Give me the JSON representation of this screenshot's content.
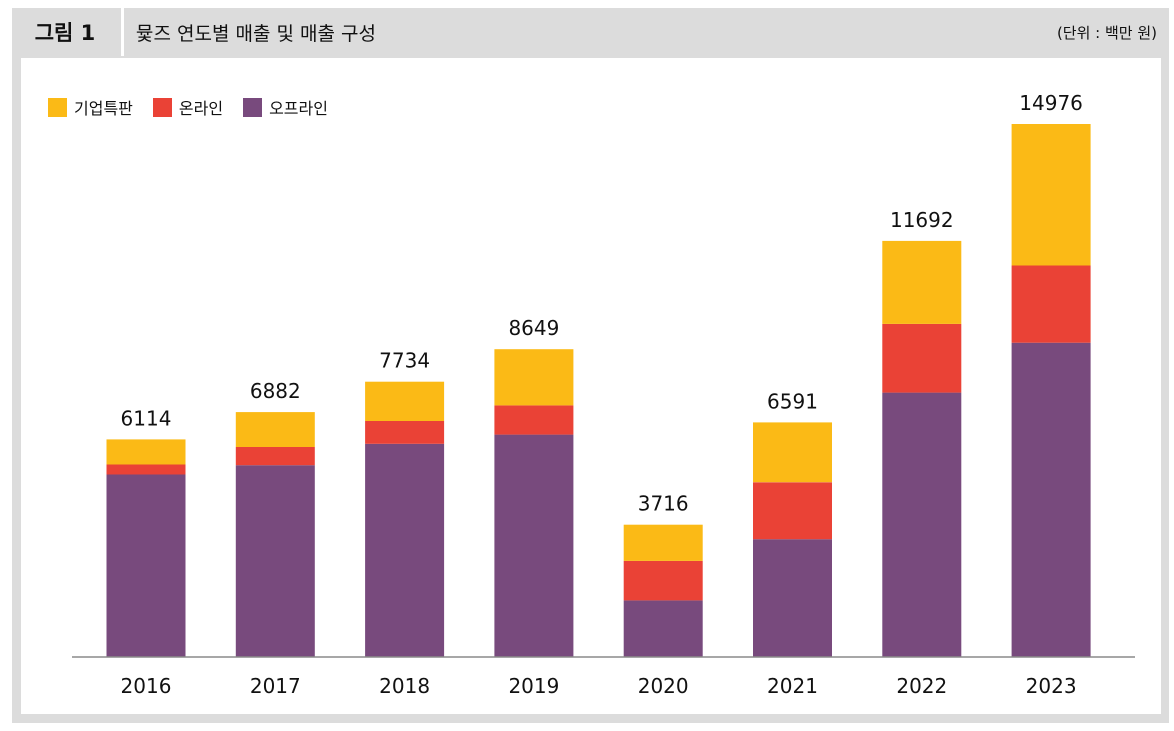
{
  "figure": {
    "label": "그림 1",
    "title": "뮻즈 연도별 매출 및 매출 구성",
    "unit": "(단위 : 백만 원)"
  },
  "colors": {
    "기업특판": "#FBBA16",
    "온라인": "#EA4236",
    "오프라인": "#784A7D",
    "header_bg": "#dcdcdc"
  },
  "chart_data": {
    "type": "bar",
    "stacked": true,
    "title": "뮻즈 연도별 매출 및 매출 구성",
    "unit": "(단위 : 백만 원)",
    "xlabel": "",
    "ylabel": "",
    "ylim": [
      0,
      16000
    ],
    "grid": false,
    "legend": "top-left",
    "categories": [
      "2016",
      "2017",
      "2018",
      "2019",
      "2020",
      "2021",
      "2022",
      "2023"
    ],
    "totals": [
      6114,
      6882,
      7734,
      8649,
      3716,
      6591,
      11692,
      14976
    ],
    "series": [
      {
        "name": "오프라인",
        "color": "#784A7D",
        "values": [
          5130,
          5390,
          5990,
          6250,
          1590,
          3310,
          7430,
          8830
        ]
      },
      {
        "name": "온라인",
        "color": "#EA4236",
        "values": [
          280,
          510,
          640,
          820,
          1110,
          1600,
          1930,
          2170
        ]
      },
      {
        "name": "기업특판",
        "color": "#FBBA16",
        "values": [
          704,
          982,
          1104,
          1579,
          1016,
          1681,
          2332,
          3976
        ]
      }
    ],
    "legend_order": [
      "기업특판",
      "온라인",
      "오프라인"
    ]
  }
}
